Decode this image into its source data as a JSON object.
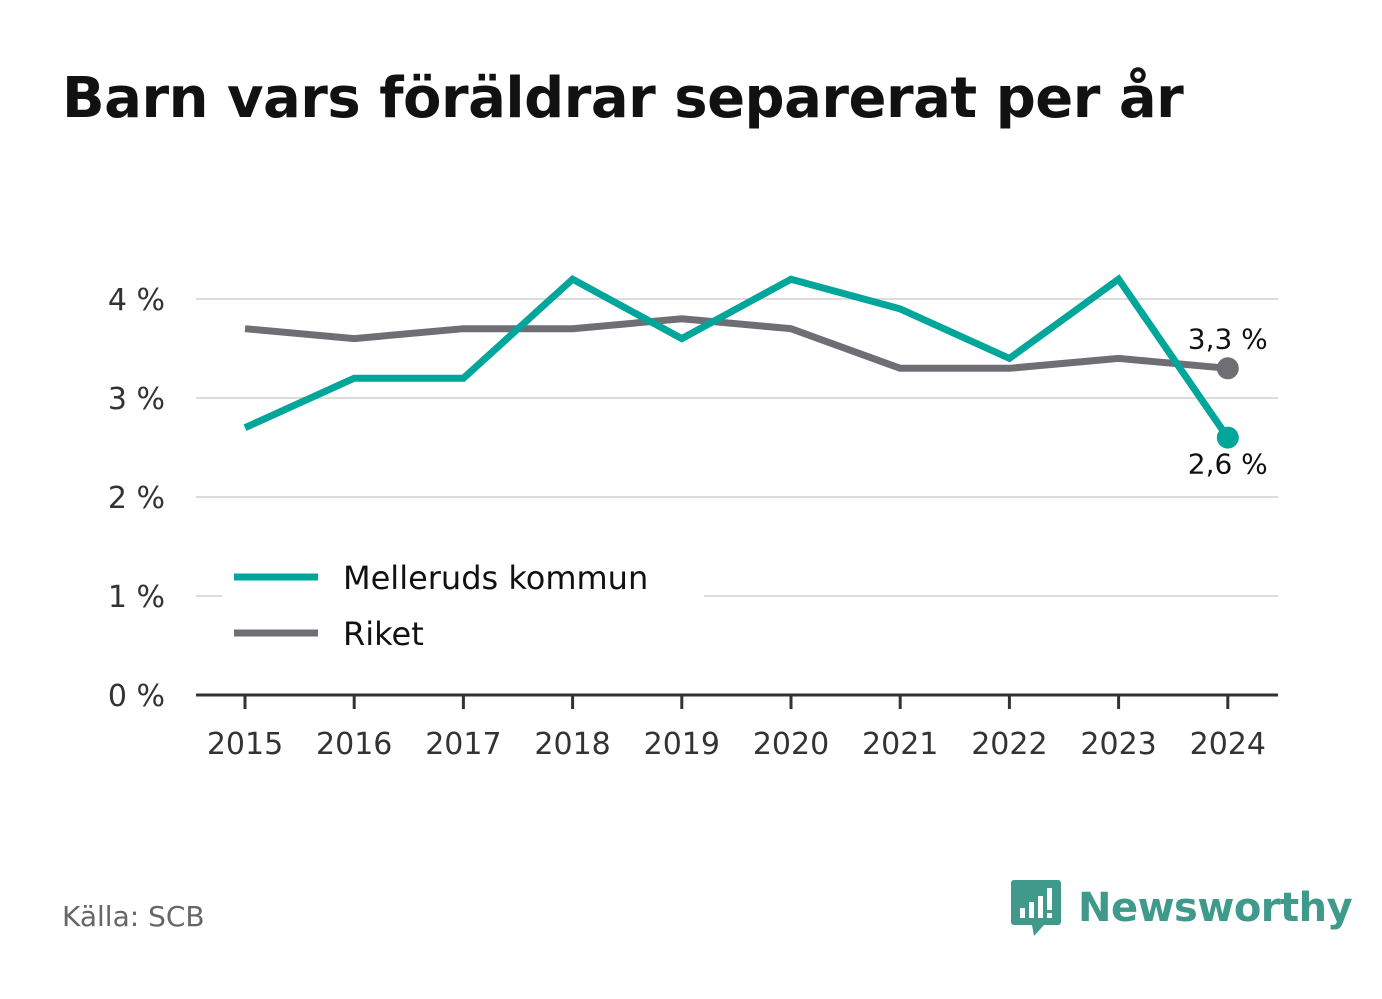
{
  "chart_data": {
    "type": "line",
    "title": "Barn vars föräldrar separerat per år",
    "x": [
      "2015",
      "2016",
      "2017",
      "2018",
      "2019",
      "2020",
      "2021",
      "2022",
      "2023",
      "2024"
    ],
    "series": [
      {
        "name": "Melleruds kommun",
        "color": "#00a69a",
        "values": [
          2.7,
          3.2,
          3.2,
          4.2,
          3.6,
          4.2,
          3.9,
          3.4,
          4.2,
          2.6
        ],
        "end_label": "2,6 %"
      },
      {
        "name": "Riket",
        "color": "#6f6e75",
        "values": [
          3.7,
          3.6,
          3.7,
          3.7,
          3.8,
          3.7,
          3.3,
          3.3,
          3.4,
          3.3
        ],
        "end_label": "3,3 %"
      }
    ],
    "ylim": [
      0,
      4.2
    ],
    "yticks": [
      0,
      1,
      2,
      3,
      4
    ],
    "ytick_labels": [
      "0 %",
      "1 %",
      "2 %",
      "3 %",
      "4 %"
    ],
    "grid": true,
    "legend": "bottom-left"
  },
  "source": "Källa: SCB",
  "brand": {
    "name": "Newsworthy",
    "color": "#3f9a8c",
    "icon": "newsworthy-logo-icon"
  }
}
